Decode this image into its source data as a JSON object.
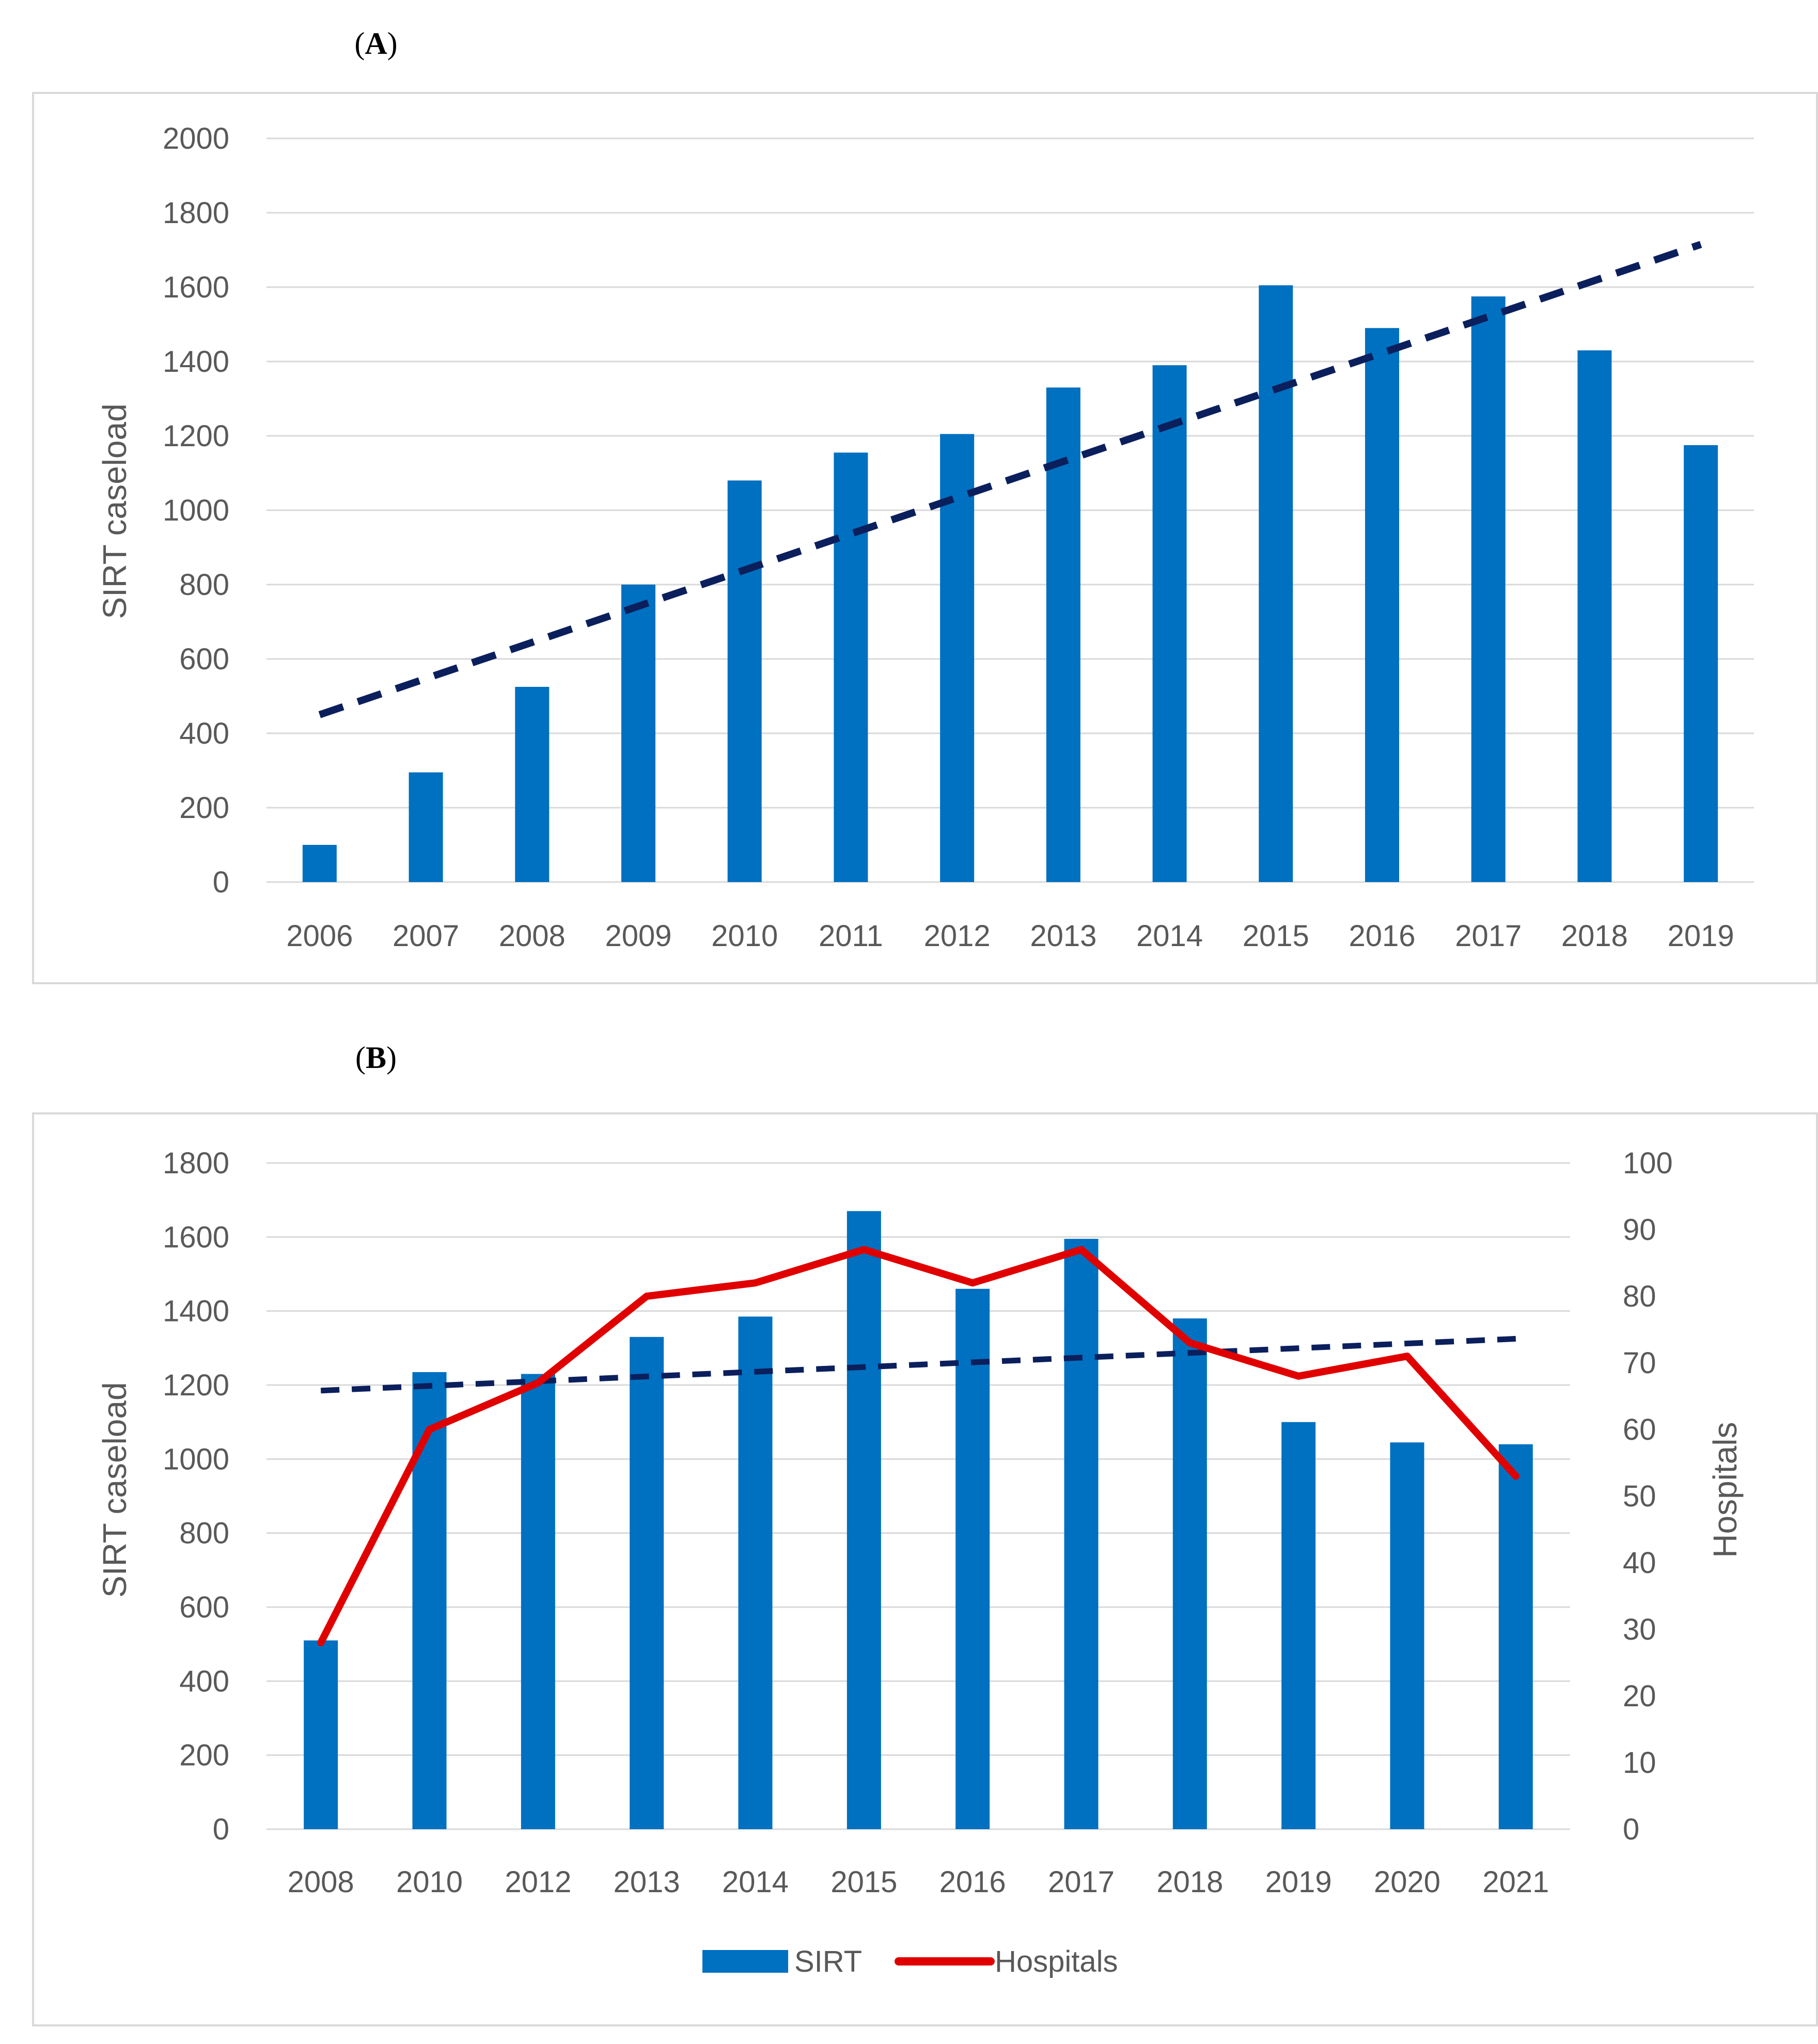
{
  "chart_data": [
    {
      "panel": "A",
      "type": "bar",
      "categories": [
        "2006",
        "2007",
        "2008",
        "2009",
        "2010",
        "2011",
        "2012",
        "2013",
        "2014",
        "2015",
        "2016",
        "2017",
        "2018",
        "2019"
      ],
      "series": [
        {
          "values": [
            100,
            295,
            525,
            800,
            1080,
            1155,
            1205,
            1330,
            1390,
            1605,
            1490,
            1575,
            1430,
            1175
          ]
        }
      ],
      "trendline": {
        "style": "dashed",
        "color": "#0b1f5c",
        "start": 450,
        "end": 1715
      },
      "ylabel": "SIRT caseload",
      "xlabel": "",
      "ylim": [
        0,
        2000
      ],
      "yticks": [
        "0",
        "200",
        "400",
        "600",
        "800",
        "1000",
        "1200",
        "1400",
        "1600",
        "1800",
        "2000"
      ],
      "grid": true,
      "bar_color": "#0070c0"
    },
    {
      "panel": "B",
      "type": "bar",
      "categories": [
        "2008",
        "2010",
        "2012",
        "2013",
        "2014",
        "2015",
        "2016",
        "2017",
        "2018",
        "2019",
        "2020",
        "2021"
      ],
      "series": [
        {
          "name": "SIRT",
          "type": "bar",
          "axis": "left",
          "color": "#0070c0",
          "values": [
            510,
            1235,
            1230,
            1330,
            1385,
            1670,
            1460,
            1595,
            1380,
            1100,
            1045,
            1040
          ]
        },
        {
          "name": "Hospitals",
          "type": "line",
          "axis": "right",
          "color": "#e00000",
          "values": [
            28,
            60,
            67,
            80,
            82,
            87,
            82,
            87,
            73,
            68,
            71,
            53
          ]
        }
      ],
      "trendline": {
        "style": "dashed",
        "color": "#0b1f5c",
        "start": 1185,
        "end": 1325
      },
      "ylabel": "SIRT caseload",
      "y2label": "Hospitals",
      "xlabel": "",
      "ylim": [
        0,
        1800
      ],
      "y2lim": [
        0,
        100
      ],
      "yticks": [
        "0",
        "200",
        "400",
        "600",
        "800",
        "1000",
        "1200",
        "1400",
        "1600",
        "1800"
      ],
      "y2ticks": [
        "0",
        "10",
        "20",
        "30",
        "40",
        "50",
        "60",
        "70",
        "80",
        "90",
        "100"
      ],
      "grid": true,
      "legend": "bottom"
    }
  ]
}
